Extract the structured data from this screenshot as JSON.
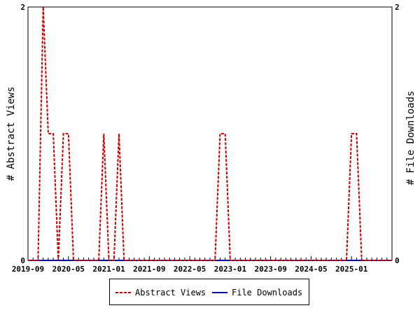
{
  "chart_data": {
    "type": "line",
    "title": "",
    "ylabel_left": "# Abstract Views",
    "ylabel_right": "# File Downloads",
    "y_left_ticks": [
      "0",
      "2"
    ],
    "y_right_ticks": [
      "0",
      "2"
    ],
    "ylim": [
      0,
      2
    ],
    "x_tick_labels": [
      "2019-09",
      "2020-05",
      "2021-01",
      "2021-09",
      "2022-05",
      "2023-01",
      "2023-09",
      "2024-05",
      "2025-01"
    ],
    "x_range_months": [
      "2019-09",
      "2025-09"
    ],
    "grid": false,
    "legend_position": "bottom",
    "series": [
      {
        "name": "Abstract Views",
        "color": "#cc0000",
        "style": "dashed",
        "points": [
          [
            "2019-09",
            0
          ],
          [
            "2019-10",
            0
          ],
          [
            "2019-11",
            0
          ],
          [
            "2019-12",
            2
          ],
          [
            "2020-01",
            1
          ],
          [
            "2020-02",
            1
          ],
          [
            "2020-03",
            0
          ],
          [
            "2020-04",
            1
          ],
          [
            "2020-05",
            1
          ],
          [
            "2020-06",
            0
          ],
          [
            "2020-07",
            0
          ],
          [
            "2020-08",
            0
          ],
          [
            "2020-09",
            0
          ],
          [
            "2020-10",
            0
          ],
          [
            "2020-11",
            0
          ],
          [
            "2020-12",
            1
          ],
          [
            "2021-01",
            0
          ],
          [
            "2021-02",
            0
          ],
          [
            "2021-03",
            1
          ],
          [
            "2021-04",
            0
          ],
          [
            "2022-09",
            0
          ],
          [
            "2022-10",
            0
          ],
          [
            "2022-11",
            1
          ],
          [
            "2022-12",
            1
          ],
          [
            "2023-01",
            0
          ],
          [
            "2024-11",
            0
          ],
          [
            "2024-12",
            0
          ],
          [
            "2025-01",
            1
          ],
          [
            "2025-02",
            1
          ],
          [
            "2025-03",
            0
          ],
          [
            "2025-09",
            0
          ]
        ]
      },
      {
        "name": "File Downloads",
        "color": "#000099",
        "style": "solid",
        "points": [
          [
            "2019-09",
            0
          ],
          [
            "2025-09",
            0
          ]
        ]
      }
    ]
  }
}
